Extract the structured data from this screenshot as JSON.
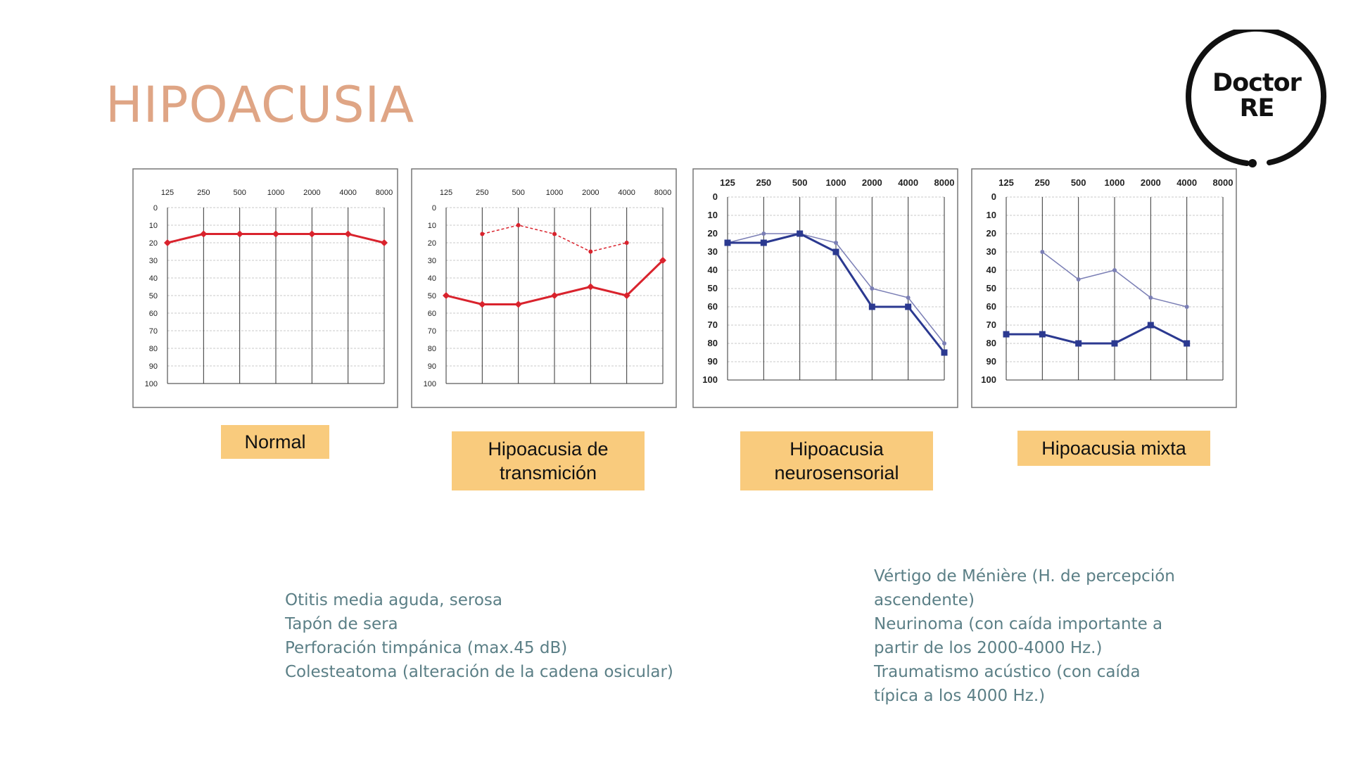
{
  "title": "HIPOACUSIA",
  "logo": {
    "line1": "Doctor",
    "line2": "RE"
  },
  "frequencies": [
    "125",
    "250",
    "500",
    "1000",
    "2000",
    "4000",
    "8000"
  ],
  "db_ticks": [
    "0",
    "10",
    "20",
    "30",
    "40",
    "50",
    "60",
    "70",
    "80",
    "90",
    "100"
  ],
  "labels": {
    "normal": "Normal",
    "transmission_line1": "Hipoacusia de",
    "transmission_line2": "transmición",
    "neuro_line1": "Hipoacusia",
    "neuro_line2": "neurosensorial",
    "mixed": "Hipoacusia mixta"
  },
  "notes": {
    "transmission": [
      "Otitis media aguda, serosa",
      "Tapón de sera",
      "Perforación timpánica (max.45 dB)",
      "Colesteatoma (alteración de la cadena osicular)"
    ],
    "neuro": [
      "Vértigo de Ménière (H. de percepción",
      "ascendente)",
      "Neurinoma (con caída importante a",
      "partir de los 2000-4000 Hz.)",
      "Traumatismo acústico (con caída",
      "típica a los 4000 Hz.)"
    ]
  },
  "colors": {
    "red": "#d9232d",
    "blue": "#2b3990",
    "blue_light": "#7b7fb5",
    "title": "#dfa585",
    "box": "#f9cb7d",
    "note": "#5b7f86"
  },
  "chart_data": [
    {
      "type": "line",
      "ylim": [
        0,
        100
      ],
      "y_inverted": true,
      "x": [
        "125",
        "250",
        "500",
        "1000",
        "2000",
        "4000",
        "8000"
      ],
      "series": [
        {
          "values": [
            20,
            15,
            15,
            15,
            15,
            15,
            20
          ],
          "color": "#d9232d",
          "style": "solid",
          "marker": "diamond"
        }
      ]
    },
    {
      "type": "line",
      "ylim": [
        0,
        100
      ],
      "y_inverted": true,
      "x": [
        "125",
        "250",
        "500",
        "1000",
        "2000",
        "4000",
        "8000"
      ],
      "series": [
        {
          "values": [
            null,
            15,
            10,
            15,
            25,
            20,
            null
          ],
          "color": "#d9232d",
          "style": "dashed",
          "marker": "dot"
        },
        {
          "values": [
            50,
            55,
            55,
            50,
            45,
            50,
            30
          ],
          "color": "#d9232d",
          "style": "solid",
          "marker": "diamond"
        }
      ]
    },
    {
      "type": "line",
      "ylim": [
        0,
        100
      ],
      "y_inverted": true,
      "x": [
        "125",
        "250",
        "500",
        "1000",
        "2000",
        "4000",
        "8000"
      ],
      "series": [
        {
          "values": [
            25,
            20,
            20,
            25,
            50,
            55,
            80
          ],
          "color": "#7b7fb5",
          "style": "thin",
          "marker": "dot"
        },
        {
          "values": [
            25,
            25,
            20,
            30,
            60,
            60,
            85
          ],
          "color": "#2b3990",
          "style": "solid",
          "marker": "square"
        }
      ]
    },
    {
      "type": "line",
      "ylim": [
        0,
        100
      ],
      "y_inverted": true,
      "x": [
        "125",
        "250",
        "500",
        "1000",
        "2000",
        "4000",
        "8000"
      ],
      "series": [
        {
          "values": [
            null,
            30,
            45,
            40,
            55,
            60,
            null
          ],
          "color": "#7b7fb5",
          "style": "thin",
          "marker": "dot"
        },
        {
          "values": [
            75,
            75,
            80,
            80,
            70,
            80,
            null
          ],
          "color": "#2b3990",
          "style": "solid",
          "marker": "square"
        }
      ]
    }
  ]
}
